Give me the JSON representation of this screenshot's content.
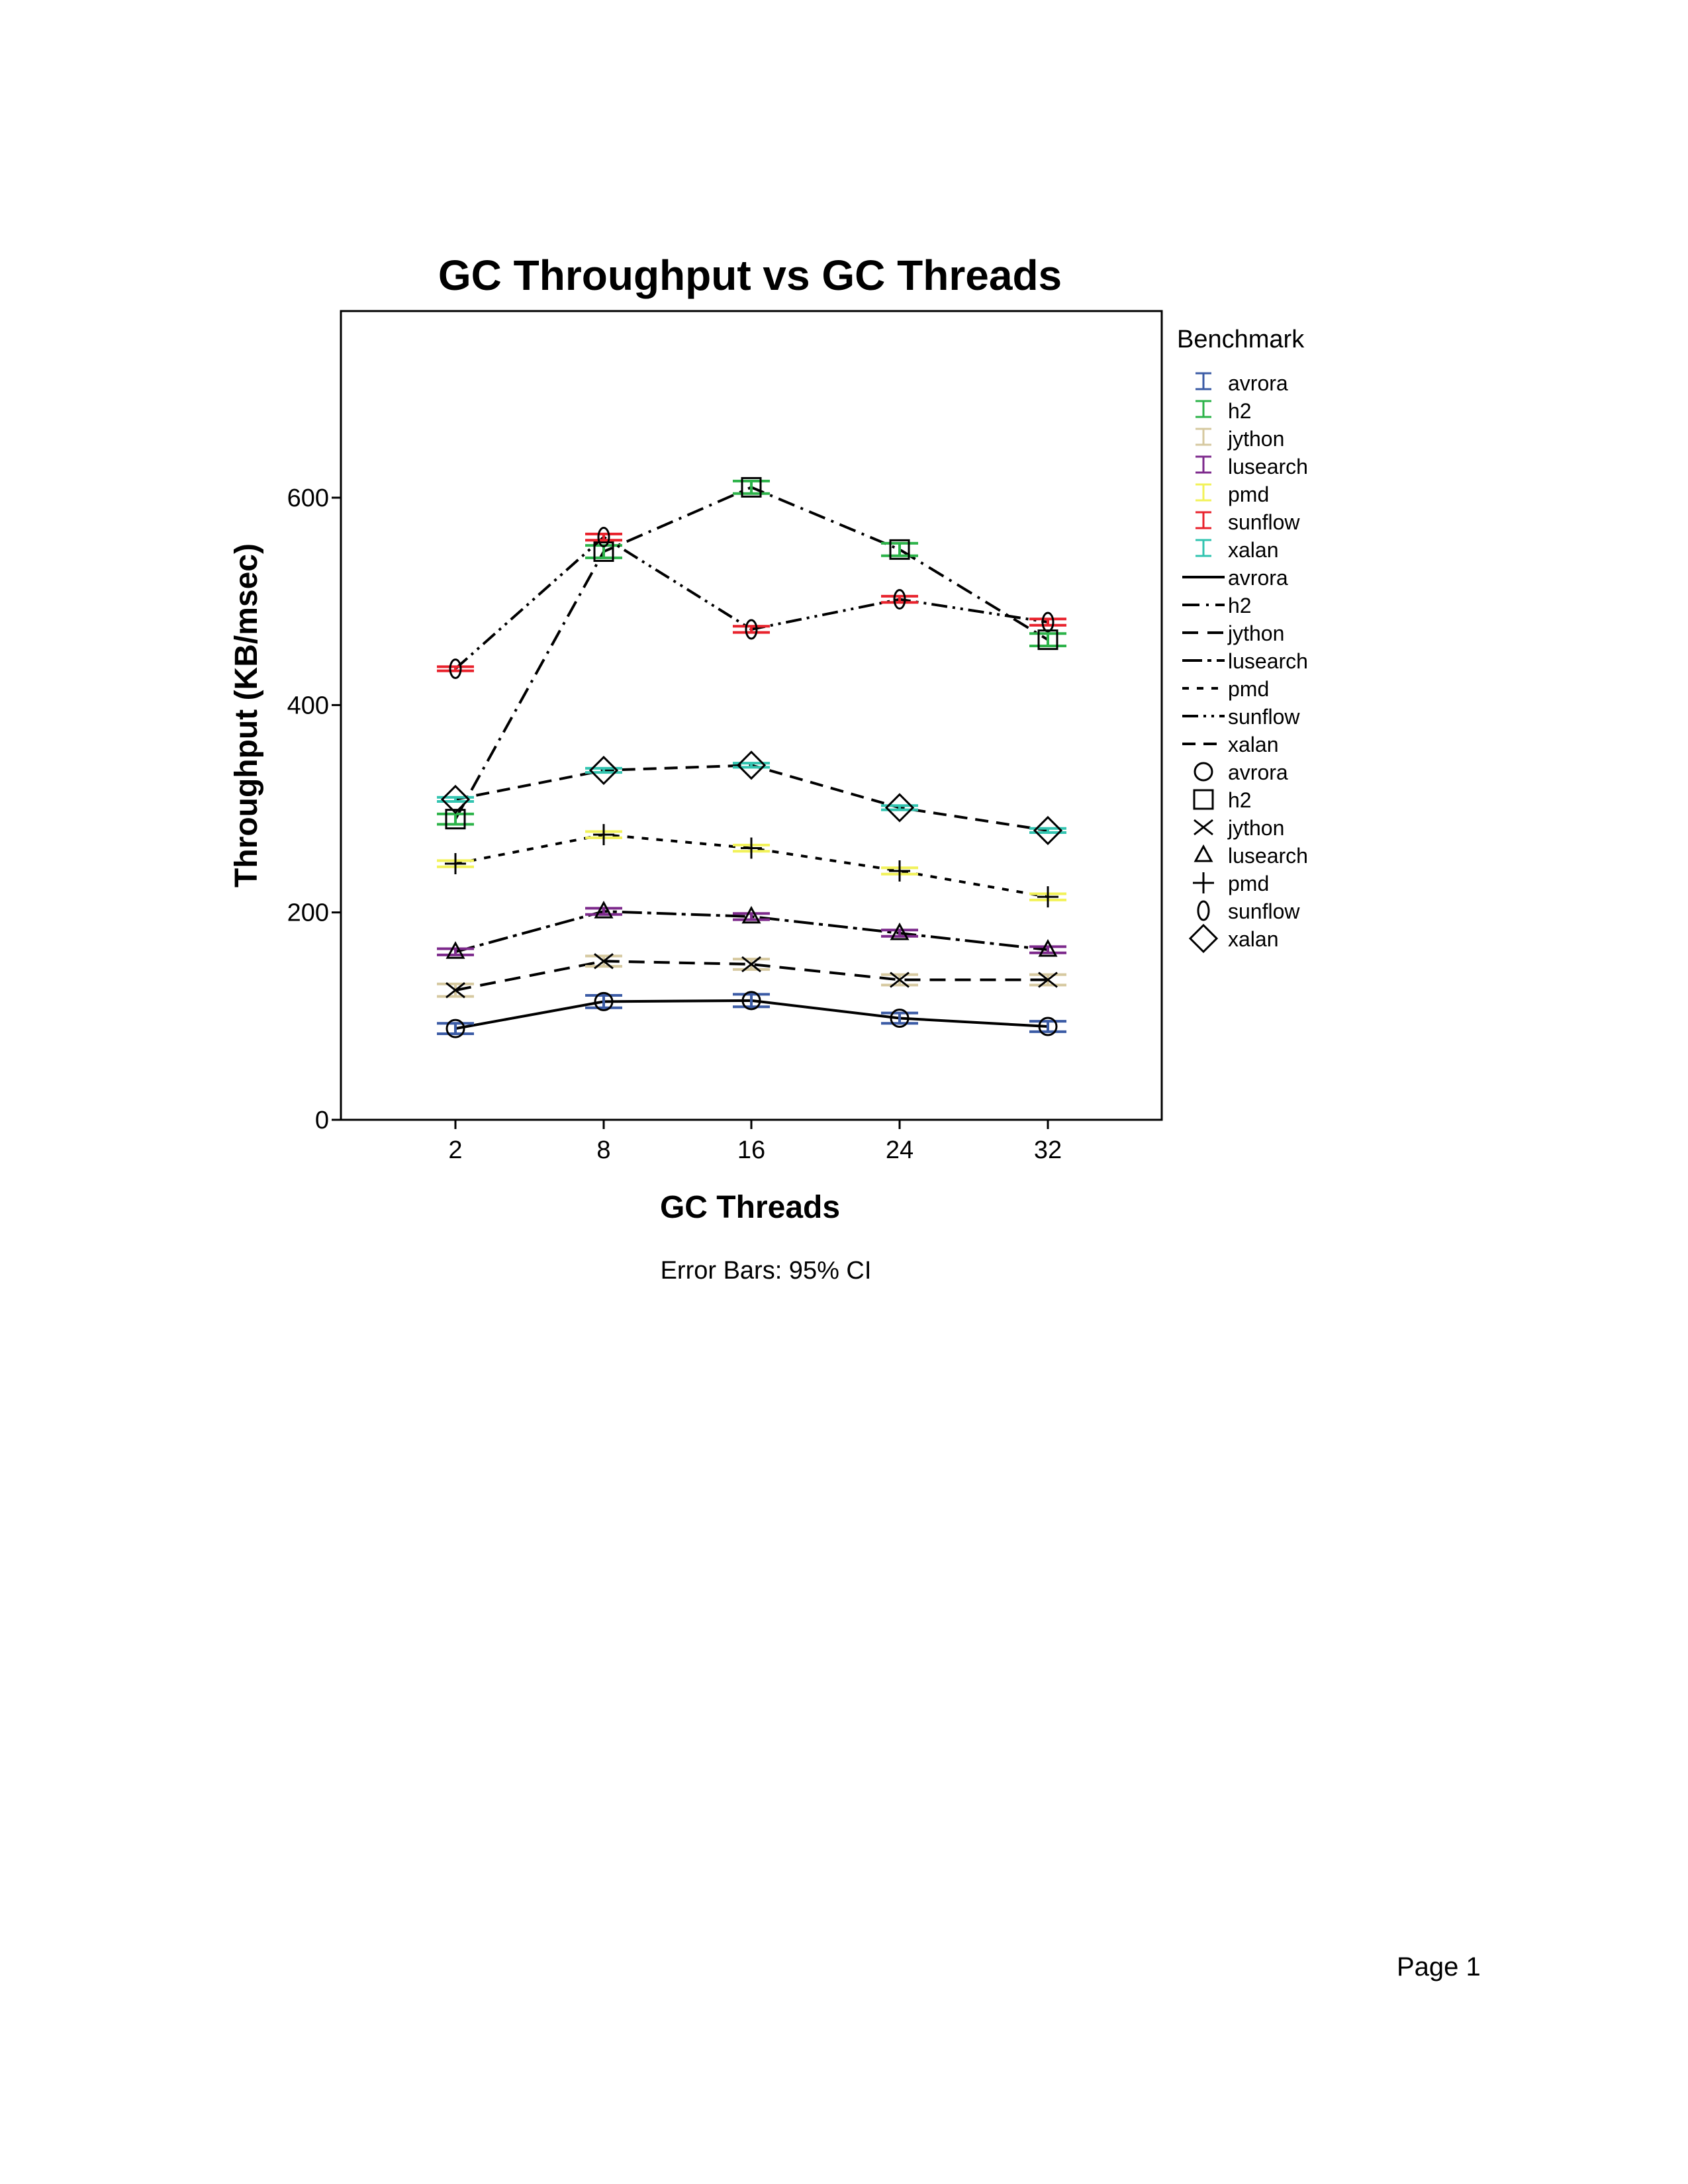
{
  "page": {
    "page_label": "Page 1"
  },
  "chart_data": {
    "type": "line",
    "title": "GC Throughput vs GC Threads",
    "xlabel": "GC Threads",
    "ylabel": "Throughput (KB/msec)",
    "footnote": "Error Bars: 95% CI",
    "categories": [
      "2",
      "8",
      "16",
      "24",
      "32"
    ],
    "yticks": [
      0,
      200,
      400,
      600
    ],
    "ylim": [
      0,
      600
    ],
    "ymax_visual": 780,
    "legend_title": "Benchmark",
    "legend_groups": {
      "errorbars": [
        "avrora",
        "h2",
        "jython",
        "lusearch",
        "pmd",
        "sunflow",
        "xalan"
      ],
      "lines": [
        "avrora",
        "h2",
        "jython",
        "lusearch",
        "pmd",
        "sunflow",
        "xalan"
      ],
      "markers": [
        "avrora",
        "h2",
        "jython",
        "lusearch",
        "pmd",
        "sunflow",
        "xalan"
      ]
    },
    "legend_placement": "right",
    "series": [
      {
        "name": "avrora",
        "values": [
          88,
          114,
          115,
          98,
          90
        ],
        "ci": [
          5,
          6,
          6,
          5,
          5
        ],
        "color": "#3b5ba5",
        "dash": "none",
        "marker": "circle"
      },
      {
        "name": "h2",
        "values": [
          290,
          548,
          610,
          550,
          463
        ],
        "ci": [
          5,
          6,
          6,
          6,
          6
        ],
        "color": "#2db34a",
        "dash": "26 10 4 10",
        "marker": "square"
      },
      {
        "name": "jython",
        "values": [
          125,
          153,
          150,
          135,
          135
        ],
        "ci": [
          6,
          5,
          5,
          5,
          5
        ],
        "color": "#d6c9a0",
        "dash": "24 14",
        "marker": "x"
      },
      {
        "name": "lusearch",
        "values": [
          162,
          201,
          196,
          180,
          164
        ],
        "ci": [
          3,
          3,
          3,
          3,
          3
        ],
        "color": "#7d2a8c",
        "dash": "30 8 6 8",
        "marker": "triangle"
      },
      {
        "name": "pmd",
        "values": [
          247,
          275,
          262,
          240,
          215
        ],
        "ci": [
          3,
          3,
          3,
          3,
          3
        ],
        "color": "#f2f25a",
        "dash": "10 12",
        "marker": "plus"
      },
      {
        "name": "sunflow",
        "values": [
          435,
          562,
          473,
          502,
          480
        ],
        "ci": [
          2,
          3,
          3,
          3,
          3
        ],
        "color": "#e8222c",
        "dash": "24 8 4 8 4 8",
        "marker": "ellipse"
      },
      {
        "name": "xalan",
        "values": [
          309,
          337,
          342,
          301,
          279
        ],
        "ci": [
          2,
          2,
          2,
          2,
          2
        ],
        "color": "#32c4b0",
        "dash": "20 12",
        "marker": "diamond"
      }
    ]
  }
}
